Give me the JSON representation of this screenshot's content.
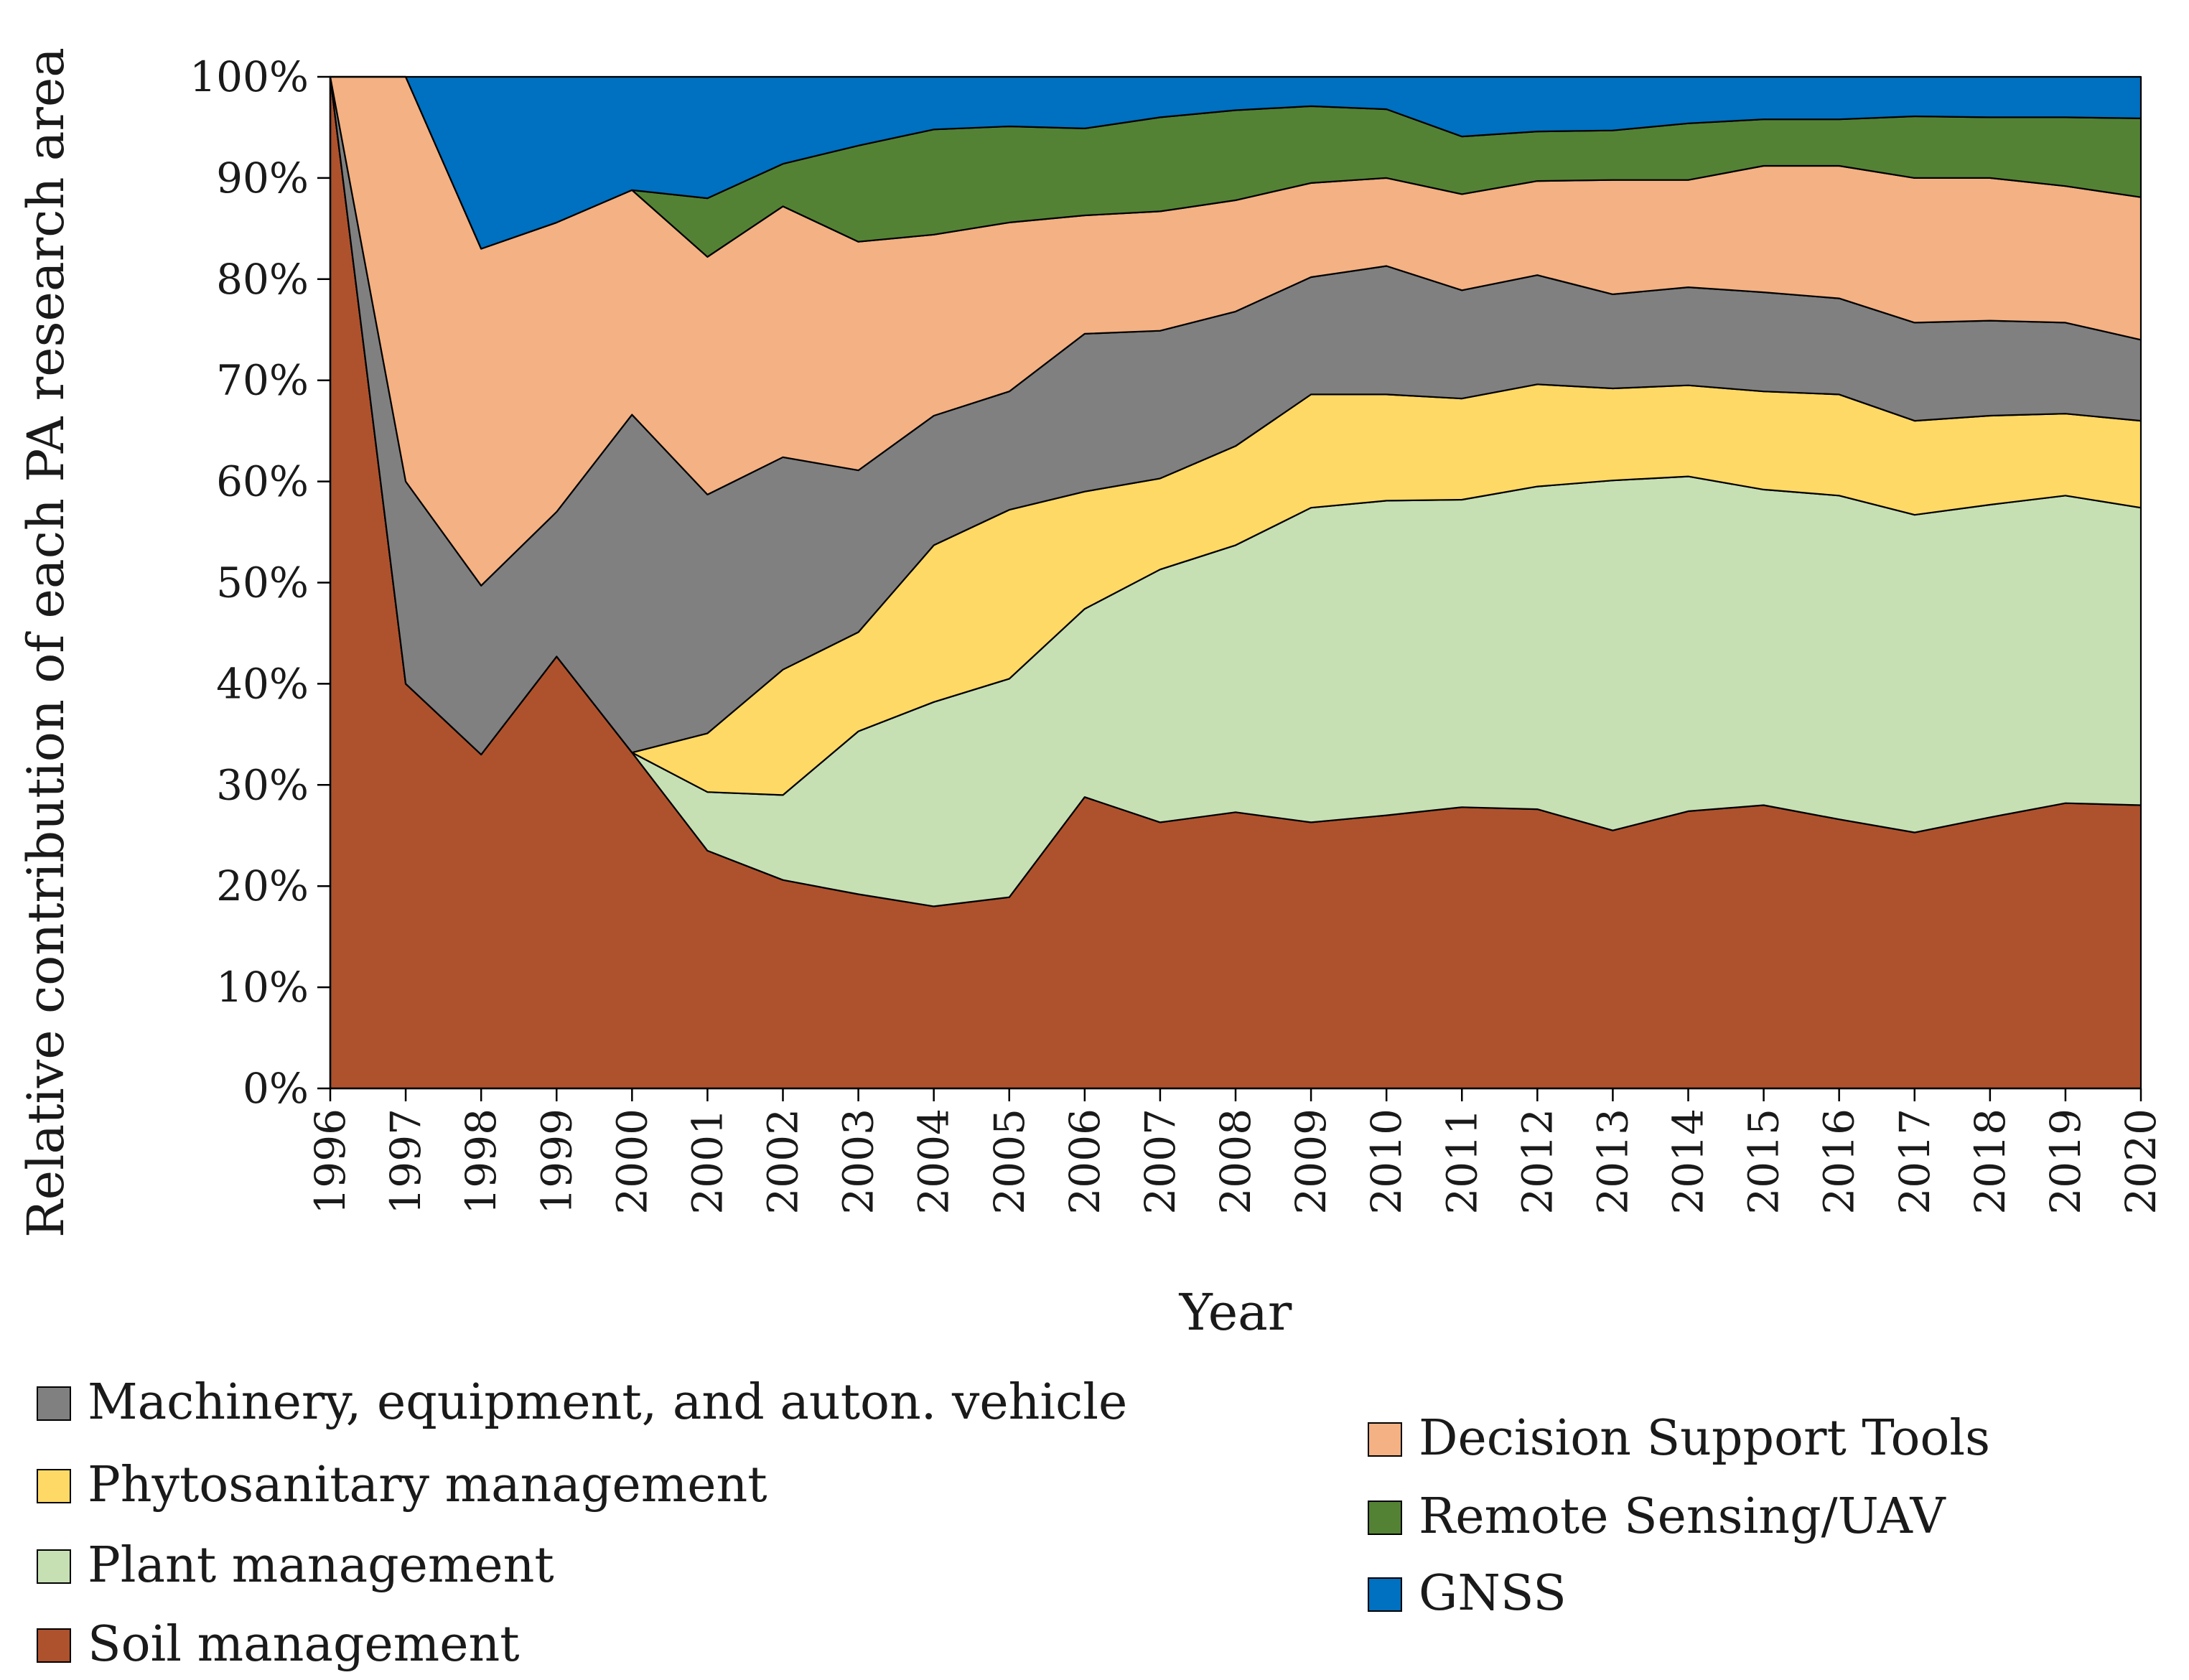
{
  "chart_data": {
    "type": "area",
    "stacked": true,
    "normalized": true,
    "title": "",
    "xlabel": "Year",
    "ylabel": "Relative contribution of each PA research area",
    "x": [
      "1996",
      "1997",
      "1998",
      "1999",
      "2000",
      "2001",
      "2002",
      "2003",
      "2004",
      "2005",
      "2006",
      "2007",
      "2008",
      "2009",
      "2010",
      "2011",
      "2012",
      "2013",
      "2014",
      "2015",
      "2016",
      "2017",
      "2018",
      "2019",
      "2020"
    ],
    "ylim": [
      0,
      100
    ],
    "yticks": [
      "0%",
      "10%",
      "20%",
      "30%",
      "40%",
      "50%",
      "60%",
      "70%",
      "80%",
      "90%",
      "100%"
    ],
    "grid": false,
    "series": [
      {
        "name": "Soil management",
        "color": "#ae522e",
        "values": [
          100,
          40,
          33,
          42.7,
          33.2,
          23.5,
          20.6,
          19.2,
          18.0,
          18.9,
          28.8,
          26.3,
          27.3,
          26.3,
          27.0,
          27.8,
          27.6,
          25.5,
          27.4,
          28.0,
          26.6,
          25.3,
          26.8,
          28.2,
          28.0
        ]
      },
      {
        "name": "Plant management",
        "color": "#c6e0b4",
        "values": [
          0,
          0,
          0,
          0,
          0,
          5.8,
          8.4,
          16.1,
          20.2,
          21.6,
          18.6,
          25.0,
          26.4,
          31.1,
          31.1,
          30.4,
          31.9,
          34.6,
          33.1,
          31.2,
          32.0,
          31.4,
          30.9,
          30.4,
          29.4
        ]
      },
      {
        "name": "Phytosanitary management",
        "color": "#ffd966",
        "values": [
          0,
          0,
          0,
          0,
          0,
          5.8,
          12.4,
          9.8,
          15.5,
          16.7,
          11.6,
          9.0,
          9.8,
          11.2,
          10.5,
          10.0,
          10.1,
          9.1,
          9.0,
          9.7,
          10.0,
          9.3,
          8.8,
          8.1,
          8.6
        ]
      },
      {
        "name": "Machinery, equipment, and auton. vehicle",
        "color": "#808080",
        "values": [
          0,
          20,
          16.7,
          14.3,
          33.4,
          23.6,
          21.0,
          16.0,
          12.8,
          11.7,
          15.6,
          14.6,
          13.3,
          11.6,
          12.7,
          10.7,
          10.8,
          9.3,
          9.7,
          9.8,
          9.5,
          9.7,
          9.4,
          9.0,
          8.0
        ]
      },
      {
        "name": "Decision Support Tools",
        "color": "#f4b183",
        "values": [
          0,
          40,
          33.3,
          28.6,
          22.2,
          23.5,
          24.8,
          22.6,
          17.9,
          16.7,
          11.7,
          11.8,
          11.0,
          9.3,
          8.7,
          9.5,
          9.3,
          11.3,
          10.6,
          12.5,
          13.1,
          14.3,
          14.1,
          13.5,
          14.1
        ]
      },
      {
        "name": "Remote Sensing/UAV",
        "color": "#548235",
        "values": [
          0,
          0,
          0,
          0,
          0,
          5.8,
          4.2,
          9.5,
          10.4,
          9.5,
          8.6,
          9.3,
          8.9,
          7.6,
          6.8,
          5.7,
          4.9,
          4.9,
          5.6,
          4.6,
          4.6,
          6.1,
          6.0,
          6.8,
          7.8
        ]
      },
      {
        "name": "GNSS",
        "color": "#0070c0",
        "values": [
          0,
          0,
          17.0,
          14.4,
          11.2,
          12.0,
          8.6,
          6.8,
          5.2,
          4.9,
          5.1,
          4.0,
          3.3,
          2.9,
          3.2,
          5.9,
          5.4,
          5.3,
          4.6,
          4.2,
          4.2,
          3.9,
          4.0,
          4.0,
          4.1
        ]
      }
    ],
    "legend": {
      "position": "bottom",
      "left_column": [
        "Machinery, equipment, and auton. vehicle",
        "Phytosanitary management",
        "Plant management",
        "Soil management"
      ],
      "right_column": [
        "Decision Support Tools",
        "Remote Sensing/UAV",
        "GNSS"
      ]
    }
  }
}
